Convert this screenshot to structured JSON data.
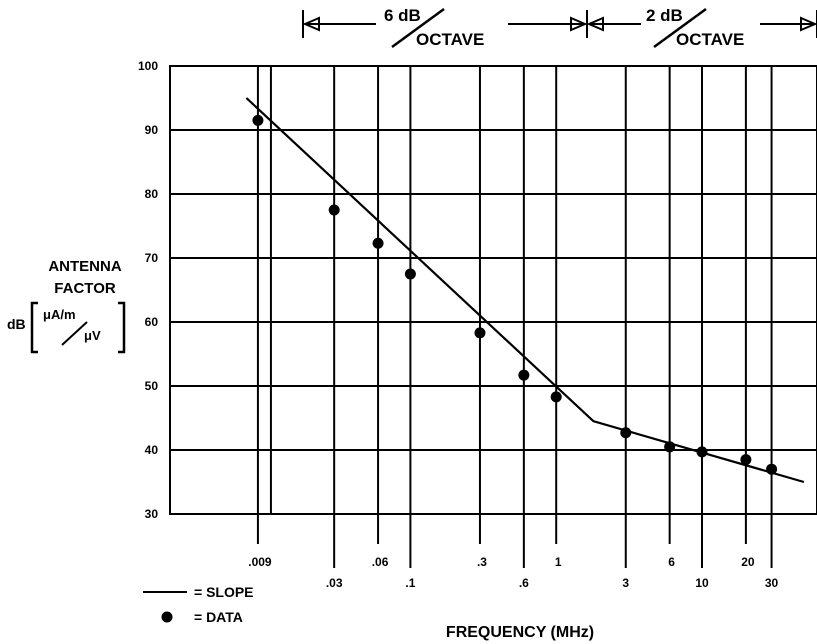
{
  "chart_data": {
    "type": "line",
    "xlabel": "FREQUENCY (MHz)",
    "ylabel": {
      "line1": "ANTENNA",
      "line2": "FACTOR",
      "prefix": "dB",
      "numerator": "μA/m",
      "denominator": "μV"
    },
    "x_scale": "log",
    "xlim": [
      0.0055,
      60
    ],
    "ylim": [
      30,
      100
    ],
    "grid": true,
    "y_ticks": [
      30,
      40,
      50,
      60,
      70,
      80,
      90,
      100
    ],
    "x_ticks": [
      {
        "value": 0.009,
        "label": ".009"
      },
      {
        "value": 0.03,
        "label": ".03"
      },
      {
        "value": 0.06,
        "label": ".06"
      },
      {
        "value": 0.1,
        "label": ".1"
      },
      {
        "value": 0.3,
        "label": ".3"
      },
      {
        "value": 0.6,
        "label": ".6"
      },
      {
        "value": 1,
        "label": "1"
      },
      {
        "value": 3,
        "label": "3"
      },
      {
        "value": 6,
        "label": "6"
      },
      {
        "value": 10,
        "label": "10"
      },
      {
        "value": 20,
        "label": "20"
      },
      {
        "value": 30,
        "label": "30"
      }
    ],
    "series": [
      {
        "name": "SLOPE",
        "kind": "line",
        "x": [
          0.0075,
          1.8,
          50
        ],
        "y": [
          95,
          44.5,
          35
        ]
      },
      {
        "name": "DATA",
        "kind": "points",
        "x": [
          0.009,
          0.03,
          0.06,
          0.1,
          0.3,
          0.6,
          1,
          3,
          6,
          10,
          20,
          30
        ],
        "y": [
          91.5,
          77.5,
          72.3,
          67.5,
          58.3,
          51.7,
          48.3,
          42.7,
          40.5,
          39.7,
          38.5,
          37
        ]
      }
    ],
    "annotations": [
      {
        "label": "6 dB",
        "sub": "OCTAVE",
        "range": [
          0.01,
          1.6
        ]
      },
      {
        "label": "2 dB",
        "sub": "OCTAVE",
        "range": [
          1.6,
          60
        ]
      }
    ],
    "legend": {
      "placement": "bottom-left",
      "items": [
        {
          "symbol": "line",
          "label": "= SLOPE"
        },
        {
          "symbol": "dot",
          "label": "= DATA"
        }
      ]
    }
  }
}
